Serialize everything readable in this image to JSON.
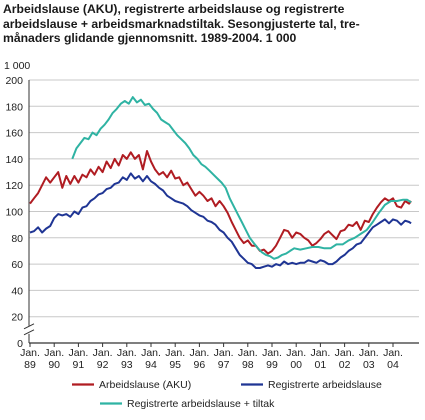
{
  "title_lines": [
    "Arbeidslause (AKU), registrerte arbeidslause og registrerte",
    "arbeidslause + arbeidsmarknadstiltak. Sesongjusterte tal, tre-",
    "månaders glidande gjennomsnitt. 1989-2004. 1 000"
  ],
  "colors": {
    "aku": "#b01c22",
    "registrerte": "#1f3594",
    "tiltak": "#2fb3a3",
    "grid": "#c8c8c8",
    "axis": "#333333"
  },
  "chart_data": {
    "type": "line",
    "title": "Arbeidslause (AKU), registrerte arbeidslause og registrerte arbeidslause + arbeidsmarknadstiltak. Sesongjusterte tal, tremånaders glidande gjennomsnitt. 1989-2004. 1 000",
    "ylabel": "1 000",
    "xlabel": "",
    "ylim": [
      0,
      200
    ],
    "yticks": [
      0,
      20,
      40,
      60,
      80,
      100,
      120,
      140,
      160,
      180,
      200
    ],
    "axis_break": true,
    "grid": true,
    "legend_position": "bottom",
    "xticks": [
      {
        "month": "Jan.",
        "year": "89"
      },
      {
        "month": "Jan.",
        "year": "90"
      },
      {
        "month": "Jan.",
        "year": "91"
      },
      {
        "month": "Jan.",
        "year": "92"
      },
      {
        "month": "Jan.",
        "year": "93"
      },
      {
        "month": "Jan.",
        "year": "94"
      },
      {
        "month": "Jan.",
        "year": "95"
      },
      {
        "month": "Jan.",
        "year": "96"
      },
      {
        "month": "Jan.",
        "year": "97"
      },
      {
        "month": "Jan.",
        "year": "98"
      },
      {
        "month": "Jan.",
        "year": "99"
      },
      {
        "month": "Jan.",
        "year": "00"
      },
      {
        "month": "Jan.",
        "year": "01"
      },
      {
        "month": "Jan.",
        "year": "02"
      },
      {
        "month": "Jan.",
        "year": "03"
      },
      {
        "month": "Jan.",
        "year": "04"
      }
    ],
    "series": [
      {
        "name": "Arbeidslause (AKU)",
        "color": "#b01c22",
        "points": [
          [
            "1989-01",
            106
          ],
          [
            "1989-03",
            110
          ],
          [
            "1989-05",
            114
          ],
          [
            "1989-07",
            120
          ],
          [
            "1989-09",
            126
          ],
          [
            "1989-11",
            122
          ],
          [
            "1990-01",
            126
          ],
          [
            "1990-03",
            130
          ],
          [
            "1990-05",
            118
          ],
          [
            "1990-07",
            127
          ],
          [
            "1990-09",
            121
          ],
          [
            "1990-11",
            127
          ],
          [
            "1991-01",
            122
          ],
          [
            "1991-03",
            128
          ],
          [
            "1991-05",
            126
          ],
          [
            "1991-07",
            132
          ],
          [
            "1991-09",
            128
          ],
          [
            "1991-11",
            134
          ],
          [
            "1992-01",
            130
          ],
          [
            "1992-03",
            138
          ],
          [
            "1992-05",
            133
          ],
          [
            "1992-07",
            140
          ],
          [
            "1992-09",
            135
          ],
          [
            "1992-11",
            143
          ],
          [
            "1993-01",
            140
          ],
          [
            "1993-03",
            145
          ],
          [
            "1993-05",
            140
          ],
          [
            "1993-07",
            143
          ],
          [
            "1993-09",
            132
          ],
          [
            "1993-11",
            146
          ],
          [
            "1994-01",
            138
          ],
          [
            "1994-03",
            132
          ],
          [
            "1994-05",
            128
          ],
          [
            "1994-07",
            130
          ],
          [
            "1994-09",
            126
          ],
          [
            "1994-11",
            131
          ],
          [
            "1995-01",
            125
          ],
          [
            "1995-03",
            126
          ],
          [
            "1995-05",
            120
          ],
          [
            "1995-07",
            122
          ],
          [
            "1995-09",
            117
          ],
          [
            "1995-11",
            112
          ],
          [
            "1996-01",
            115
          ],
          [
            "1996-03",
            112
          ],
          [
            "1996-05",
            108
          ],
          [
            "1996-07",
            110
          ],
          [
            "1996-09",
            104
          ],
          [
            "1996-11",
            108
          ],
          [
            "1997-01",
            104
          ],
          [
            "1997-03",
            99
          ],
          [
            "1997-05",
            92
          ],
          [
            "1997-07",
            86
          ],
          [
            "1997-09",
            80
          ],
          [
            "1997-11",
            76
          ],
          [
            "1998-01",
            78
          ],
          [
            "1998-03",
            74
          ],
          [
            "1998-05",
            74
          ],
          [
            "1998-07",
            70
          ],
          [
            "1998-09",
            71
          ],
          [
            "1998-11",
            68
          ],
          [
            "1999-01",
            70
          ],
          [
            "1999-03",
            74
          ],
          [
            "1999-05",
            80
          ],
          [
            "1999-07",
            86
          ],
          [
            "1999-09",
            85
          ],
          [
            "1999-11",
            80
          ],
          [
            "2000-01",
            84
          ],
          [
            "2000-03",
            83
          ],
          [
            "2000-05",
            80
          ],
          [
            "2000-07",
            78
          ],
          [
            "2000-09",
            74
          ],
          [
            "2000-11",
            76
          ],
          [
            "2001-01",
            79
          ],
          [
            "2001-03",
            83
          ],
          [
            "2001-05",
            85
          ],
          [
            "2001-07",
            82
          ],
          [
            "2001-09",
            79
          ],
          [
            "2001-11",
            85
          ],
          [
            "2002-01",
            86
          ],
          [
            "2002-03",
            90
          ],
          [
            "2002-05",
            89
          ],
          [
            "2002-07",
            92
          ],
          [
            "2002-09",
            86
          ],
          [
            "2002-11",
            93
          ],
          [
            "2003-01",
            92
          ],
          [
            "2003-03",
            98
          ],
          [
            "2003-05",
            103
          ],
          [
            "2003-07",
            107
          ],
          [
            "2003-09",
            110
          ],
          [
            "2003-11",
            108
          ],
          [
            "2004-01",
            110
          ],
          [
            "2004-03",
            104
          ],
          [
            "2004-05",
            103
          ],
          [
            "2004-07",
            108
          ],
          [
            "2004-09",
            106
          ],
          [
            "2004-10",
            108
          ]
        ]
      },
      {
        "name": "Registrerte arbeidslause",
        "color": "#1f3594",
        "points": [
          [
            "1989-01",
            84
          ],
          [
            "1989-03",
            85
          ],
          [
            "1989-05",
            88
          ],
          [
            "1989-07",
            84
          ],
          [
            "1989-09",
            87
          ],
          [
            "1989-11",
            89
          ],
          [
            "1990-01",
            95
          ],
          [
            "1990-03",
            98
          ],
          [
            "1990-05",
            97
          ],
          [
            "1990-07",
            98
          ],
          [
            "1990-09",
            96
          ],
          [
            "1990-11",
            100
          ],
          [
            "1991-01",
            98
          ],
          [
            "1991-03",
            103
          ],
          [
            "1991-05",
            104
          ],
          [
            "1991-07",
            108
          ],
          [
            "1991-09",
            110
          ],
          [
            "1991-11",
            113
          ],
          [
            "1992-01",
            114
          ],
          [
            "1992-03",
            117
          ],
          [
            "1992-05",
            118
          ],
          [
            "1992-07",
            121
          ],
          [
            "1992-09",
            122
          ],
          [
            "1992-11",
            126
          ],
          [
            "1993-01",
            124
          ],
          [
            "1993-03",
            129
          ],
          [
            "1993-05",
            125
          ],
          [
            "1993-07",
            127
          ],
          [
            "1993-09",
            123
          ],
          [
            "1993-11",
            127
          ],
          [
            "1994-01",
            123
          ],
          [
            "1994-03",
            121
          ],
          [
            "1994-05",
            118
          ],
          [
            "1994-07",
            116
          ],
          [
            "1994-09",
            112
          ],
          [
            "1994-11",
            110
          ],
          [
            "1995-01",
            108
          ],
          [
            "1995-03",
            107
          ],
          [
            "1995-05",
            106
          ],
          [
            "1995-07",
            104
          ],
          [
            "1995-09",
            101
          ],
          [
            "1995-11",
            99
          ],
          [
            "1996-01",
            97
          ],
          [
            "1996-03",
            96
          ],
          [
            "1996-05",
            93
          ],
          [
            "1996-07",
            92
          ],
          [
            "1996-09",
            90
          ],
          [
            "1996-11",
            86
          ],
          [
            "1997-01",
            84
          ],
          [
            "1997-03",
            80
          ],
          [
            "1997-05",
            77
          ],
          [
            "1997-07",
            72
          ],
          [
            "1997-09",
            67
          ],
          [
            "1997-11",
            64
          ],
          [
            "1998-01",
            61
          ],
          [
            "1998-03",
            60
          ],
          [
            "1998-05",
            57
          ],
          [
            "1998-07",
            57
          ],
          [
            "1998-09",
            58
          ],
          [
            "1998-11",
            59
          ],
          [
            "1999-01",
            58
          ],
          [
            "1999-03",
            60
          ],
          [
            "1999-05",
            59
          ],
          [
            "1999-07",
            62
          ],
          [
            "1999-09",
            60
          ],
          [
            "1999-11",
            61
          ],
          [
            "2000-01",
            60
          ],
          [
            "2000-03",
            61
          ],
          [
            "2000-05",
            61
          ],
          [
            "2000-07",
            63
          ],
          [
            "2000-09",
            62
          ],
          [
            "2000-11",
            61
          ],
          [
            "2001-01",
            63
          ],
          [
            "2001-03",
            62
          ],
          [
            "2001-05",
            60
          ],
          [
            "2001-07",
            60
          ],
          [
            "2001-09",
            62
          ],
          [
            "2001-11",
            65
          ],
          [
            "2002-01",
            67
          ],
          [
            "2002-03",
            70
          ],
          [
            "2002-05",
            72
          ],
          [
            "2002-07",
            75
          ],
          [
            "2002-09",
            76
          ],
          [
            "2002-11",
            80
          ],
          [
            "2003-01",
            84
          ],
          [
            "2003-03",
            88
          ],
          [
            "2003-05",
            90
          ],
          [
            "2003-07",
            92
          ],
          [
            "2003-09",
            94
          ],
          [
            "2003-11",
            91
          ],
          [
            "2004-01",
            94
          ],
          [
            "2004-03",
            93
          ],
          [
            "2004-05",
            90
          ],
          [
            "2004-07",
            93
          ],
          [
            "2004-09",
            92
          ],
          [
            "2004-10",
            91
          ]
        ]
      },
      {
        "name": "Registrerte arbeidslause + tiltak",
        "color": "#2fb3a3",
        "points": [
          [
            "1990-10",
            140
          ],
          [
            "1990-12",
            148
          ],
          [
            "1991-02",
            152
          ],
          [
            "1991-04",
            156
          ],
          [
            "1991-06",
            155
          ],
          [
            "1991-08",
            160
          ],
          [
            "1991-10",
            158
          ],
          [
            "1991-12",
            163
          ],
          [
            "1992-02",
            166
          ],
          [
            "1992-04",
            170
          ],
          [
            "1992-06",
            175
          ],
          [
            "1992-08",
            178
          ],
          [
            "1992-10",
            182
          ],
          [
            "1992-12",
            184
          ],
          [
            "1993-02",
            182
          ],
          [
            "1993-04",
            187
          ],
          [
            "1993-06",
            183
          ],
          [
            "1993-08",
            185
          ],
          [
            "1993-10",
            181
          ],
          [
            "1993-12",
            182
          ],
          [
            "1994-02",
            178
          ],
          [
            "1994-04",
            175
          ],
          [
            "1994-06",
            170
          ],
          [
            "1994-08",
            168
          ],
          [
            "1994-10",
            166
          ],
          [
            "1994-12",
            162
          ],
          [
            "1995-02",
            158
          ],
          [
            "1995-04",
            155
          ],
          [
            "1995-06",
            152
          ],
          [
            "1995-08",
            148
          ],
          [
            "1995-10",
            143
          ],
          [
            "1995-12",
            140
          ],
          [
            "1996-02",
            136
          ],
          [
            "1996-04",
            134
          ],
          [
            "1996-06",
            131
          ],
          [
            "1996-08",
            128
          ],
          [
            "1996-10",
            125
          ],
          [
            "1996-12",
            122
          ],
          [
            "1997-02",
            118
          ],
          [
            "1997-04",
            110
          ],
          [
            "1997-06",
            104
          ],
          [
            "1997-08",
            98
          ],
          [
            "1997-10",
            92
          ],
          [
            "1997-12",
            86
          ],
          [
            "1998-02",
            80
          ],
          [
            "1998-04",
            76
          ],
          [
            "1998-06",
            72
          ],
          [
            "1998-08",
            69
          ],
          [
            "1998-10",
            67
          ],
          [
            "1998-12",
            66
          ],
          [
            "1999-02",
            64
          ],
          [
            "1999-04",
            65
          ],
          [
            "1999-06",
            67
          ],
          [
            "1999-08",
            68
          ],
          [
            "1999-10",
            70
          ],
          [
            "1999-12",
            72
          ],
          [
            "2000-03",
            71
          ],
          [
            "2000-06",
            72
          ],
          [
            "2000-09",
            73
          ],
          [
            "2000-12",
            73
          ],
          [
            "2001-03",
            72
          ],
          [
            "2001-06",
            72
          ],
          [
            "2001-09",
            75
          ],
          [
            "2001-12",
            75
          ],
          [
            "2002-03",
            78
          ],
          [
            "2002-06",
            80
          ],
          [
            "2002-09",
            83
          ],
          [
            "2002-12",
            86
          ],
          [
            "2003-03",
            92
          ],
          [
            "2003-06",
            99
          ],
          [
            "2003-09",
            105
          ],
          [
            "2003-12",
            108
          ],
          [
            "2004-03",
            108
          ],
          [
            "2004-06",
            109
          ],
          [
            "2004-08",
            109
          ],
          [
            "2004-10",
            107
          ]
        ]
      }
    ]
  }
}
